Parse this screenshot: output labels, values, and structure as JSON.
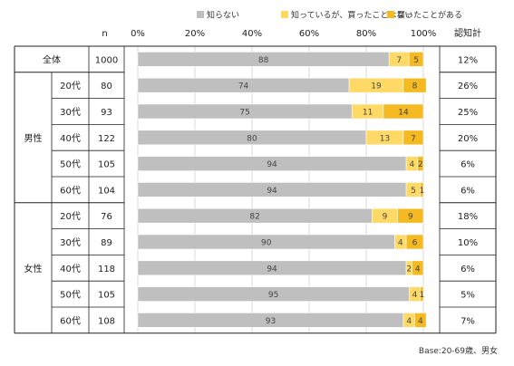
{
  "chart_data": {
    "type": "bar",
    "stacked": true,
    "orientation": "horizontal",
    "legend": [
      {
        "name": "知らない",
        "color": "#bfbfbf"
      },
      {
        "name": "知っているが、買ったことはない",
        "color": "#ffd966"
      },
      {
        "name": "買ったことがある",
        "color": "#f5b921"
      }
    ],
    "legend_position": "top",
    "col_n_header": "n",
    "col_total_header": "認知計",
    "x_ticks": [
      "0%",
      "20%",
      "40%",
      "60%",
      "80%",
      "100%"
    ],
    "xlim": [
      0,
      100
    ],
    "grid": true,
    "groups": [
      {
        "label": "",
        "rows": [
          0
        ]
      },
      {
        "label": "男性",
        "rows": [
          1,
          2,
          3,
          4,
          5
        ]
      },
      {
        "label": "女性",
        "rows": [
          6,
          7,
          8,
          9,
          10
        ]
      }
    ],
    "rows": [
      {
        "label": "全体",
        "n": "1000",
        "values": [
          88,
          7,
          5
        ],
        "total": "12%"
      },
      {
        "label": "20代",
        "n": "80",
        "values": [
          74,
          19,
          8
        ],
        "total": "26%"
      },
      {
        "label": "30代",
        "n": "93",
        "values": [
          75,
          11,
          14
        ],
        "total": "25%"
      },
      {
        "label": "40代",
        "n": "122",
        "values": [
          80,
          13,
          7
        ],
        "total": "20%"
      },
      {
        "label": "50代",
        "n": "105",
        "values": [
          94,
          4,
          2
        ],
        "total": "6%"
      },
      {
        "label": "60代",
        "n": "104",
        "values": [
          94,
          5,
          1
        ],
        "total": "6%"
      },
      {
        "label": "20代",
        "n": "76",
        "values": [
          82,
          9,
          9
        ],
        "total": "18%"
      },
      {
        "label": "30代",
        "n": "89",
        "values": [
          90,
          4,
          6
        ],
        "total": "10%"
      },
      {
        "label": "40代",
        "n": "118",
        "values": [
          94,
          2,
          4
        ],
        "total": "6%"
      },
      {
        "label": "50代",
        "n": "105",
        "values": [
          95,
          4,
          1
        ],
        "total": "5%"
      },
      {
        "label": "60代",
        "n": "108",
        "values": [
          93,
          4,
          4
        ],
        "total": "7%"
      }
    ],
    "footnote": "Base:20-69歳、男女"
  }
}
